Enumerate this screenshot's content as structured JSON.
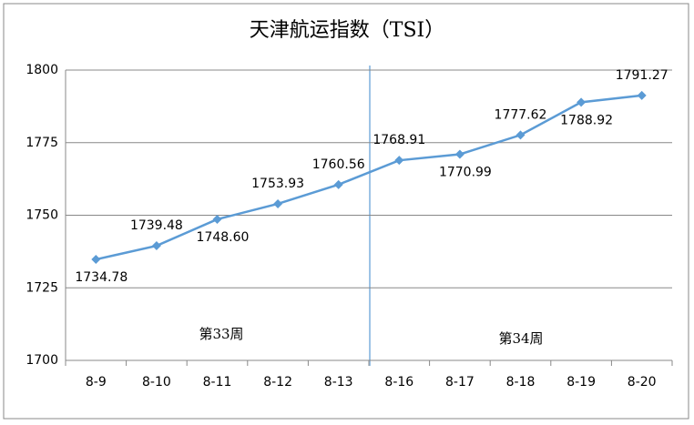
{
  "chart_data": {
    "type": "line",
    "title": "天津航运指数（TSI）",
    "categories": [
      "8-9",
      "8-10",
      "8-11",
      "8-12",
      "8-13",
      "8-16",
      "8-17",
      "8-18",
      "8-19",
      "8-20"
    ],
    "values": [
      1734.78,
      1739.48,
      1748.6,
      1753.93,
      1760.56,
      1768.91,
      1770.99,
      1777.62,
      1788.92,
      1791.27
    ],
    "value_labels": [
      "1734.78",
      "1739.48",
      "1748.60",
      "1753.93",
      "1760.56",
      "1768.91",
      "1770.99",
      "1777.62",
      "1788.92",
      "1791.27"
    ],
    "color": "#5b9bd5",
    "ylim": [
      1700,
      1800
    ],
    "yticks": [
      1700,
      1725,
      1750,
      1775,
      1800
    ],
    "grid": true,
    "annotations": [
      "第33周",
      "第34周"
    ]
  }
}
